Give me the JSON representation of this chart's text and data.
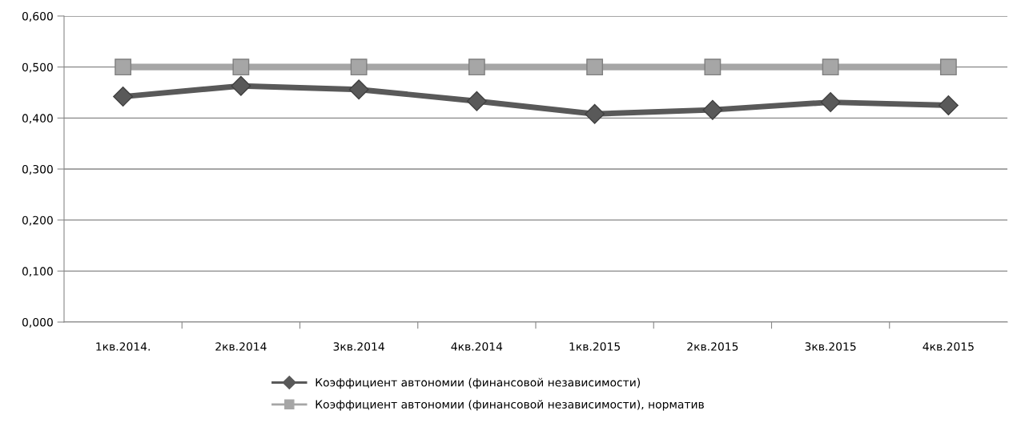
{
  "chart_data": {
    "type": "line",
    "categories": [
      "1кв.2014.",
      "2кв.2014",
      "3кв.2014",
      "4кв.2014",
      "1кв.2015",
      "2кв.2015",
      "3кв.2015",
      "4кв.2015"
    ],
    "series": [
      {
        "name": "Коэффициент автономии (финансовой независимости)",
        "color": "#595959",
        "marker": "diamond",
        "values": [
          0.442,
          0.463,
          0.456,
          0.433,
          0.408,
          0.416,
          0.431,
          0.425
        ]
      },
      {
        "name": "Коэффициент автономии (финансовой независимости), норматив",
        "color": "#a6a6a6",
        "marker": "square",
        "values": [
          0.5,
          0.5,
          0.5,
          0.5,
          0.5,
          0.5,
          0.5,
          0.5
        ]
      }
    ],
    "ylim": [
      0,
      0.6
    ],
    "yticks": [
      {
        "value": 0,
        "label": "0,000"
      },
      {
        "value": 0.1,
        "label": "0,100"
      },
      {
        "value": 0.2,
        "label": "0,200"
      },
      {
        "value": 0.3,
        "label": "0,300"
      },
      {
        "value": 0.4,
        "label": "0,400"
      },
      {
        "value": 0.5,
        "label": "0,500"
      },
      {
        "value": 0.6,
        "label": "0,600"
      }
    ],
    "grid": "y",
    "legend": "bottom"
  }
}
